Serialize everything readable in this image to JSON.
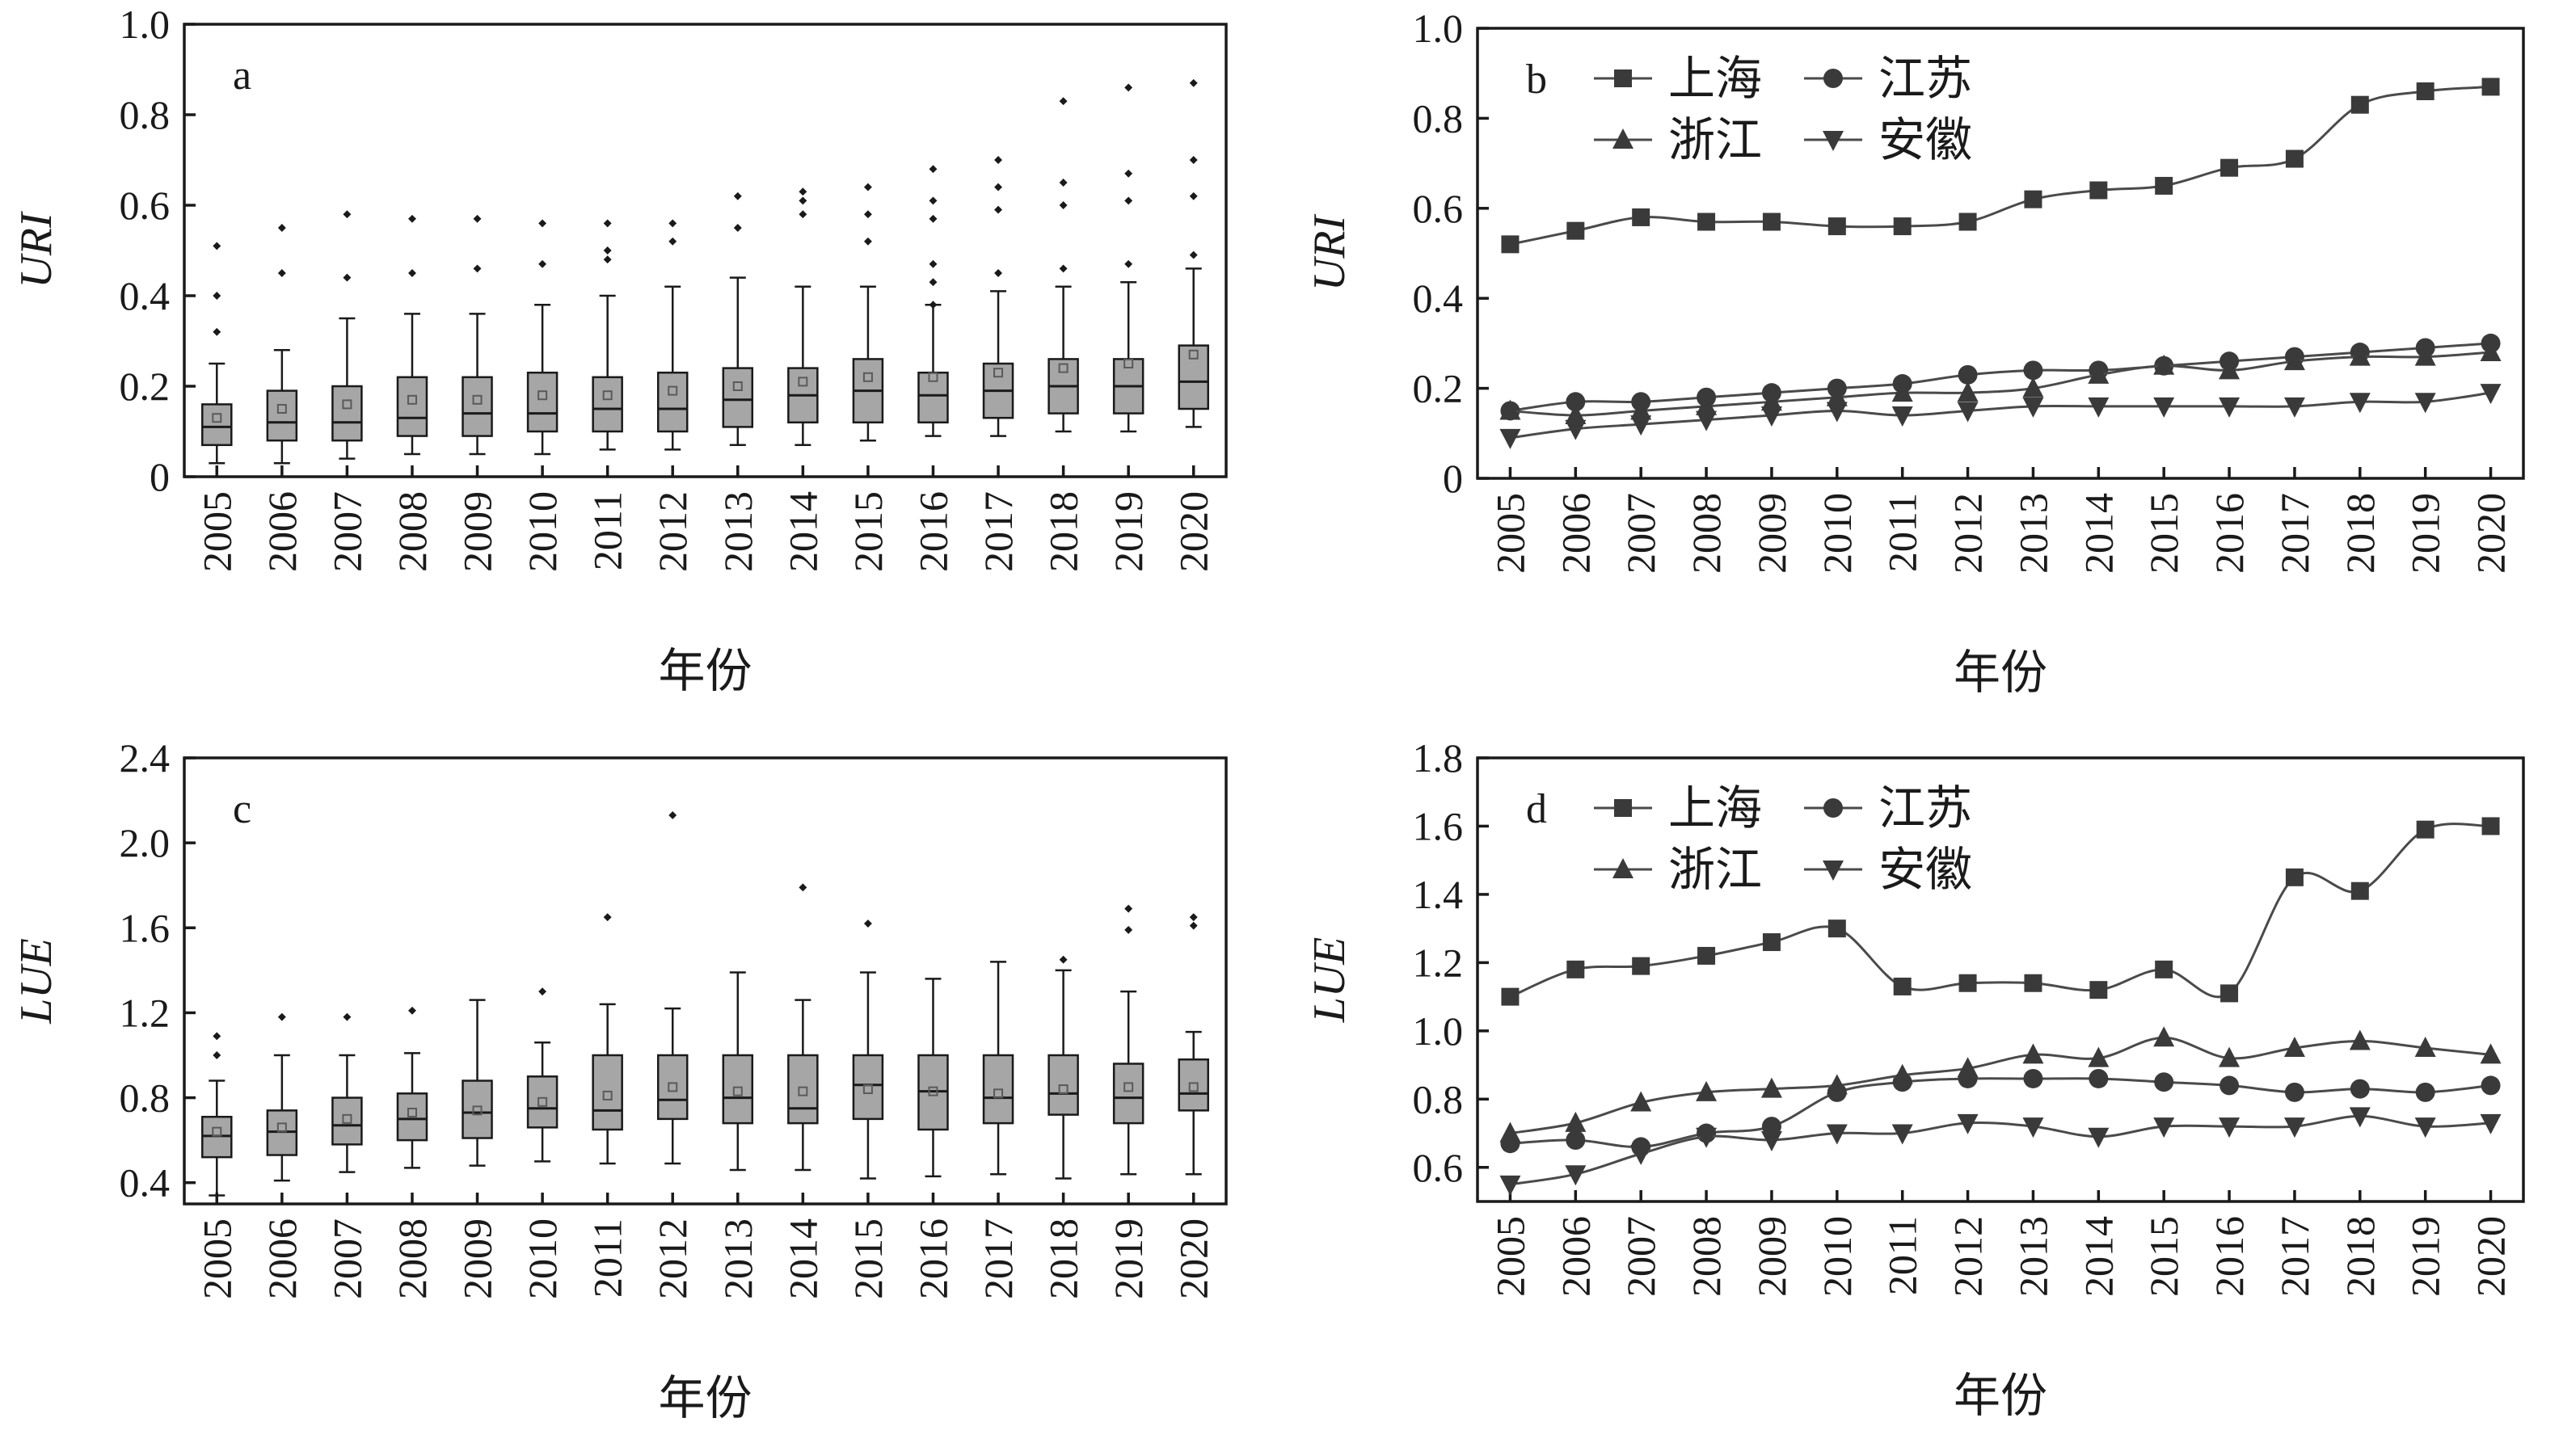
{
  "chart_data": [
    {
      "type": "box",
      "panel_label": "a",
      "ylabel": "URI",
      "xlabel": "年份",
      "ylim": [
        0,
        1.0
      ],
      "yticks": [
        "0",
        "0.2",
        "0.4",
        "0.6",
        "0.8",
        "1.0"
      ],
      "categories": [
        "2005",
        "2006",
        "2007",
        "2008",
        "2009",
        "2010",
        "2011",
        "2012",
        "2013",
        "2014",
        "2015",
        "2016",
        "2017",
        "2018",
        "2019",
        "2020"
      ],
      "boxes": [
        {
          "min": 0.03,
          "q1": 0.07,
          "median": 0.11,
          "q3": 0.16,
          "max": 0.25,
          "mean": 0.13,
          "outliers": [
            0.32,
            0.4,
            0.51
          ]
        },
        {
          "min": 0.03,
          "q1": 0.08,
          "median": 0.12,
          "q3": 0.19,
          "max": 0.28,
          "mean": 0.15,
          "outliers": [
            0.45,
            0.55
          ]
        },
        {
          "min": 0.04,
          "q1": 0.08,
          "median": 0.12,
          "q3": 0.2,
          "max": 0.35,
          "mean": 0.16,
          "outliers": [
            0.44,
            0.58
          ]
        },
        {
          "min": 0.05,
          "q1": 0.09,
          "median": 0.13,
          "q3": 0.22,
          "max": 0.36,
          "mean": 0.17,
          "outliers": [
            0.45,
            0.57
          ]
        },
        {
          "min": 0.05,
          "q1": 0.09,
          "median": 0.14,
          "q3": 0.22,
          "max": 0.36,
          "mean": 0.17,
          "outliers": [
            0.46,
            0.57
          ]
        },
        {
          "min": 0.05,
          "q1": 0.1,
          "median": 0.14,
          "q3": 0.23,
          "max": 0.38,
          "mean": 0.18,
          "outliers": [
            0.47,
            0.56
          ]
        },
        {
          "min": 0.06,
          "q1": 0.1,
          "median": 0.15,
          "q3": 0.22,
          "max": 0.4,
          "mean": 0.18,
          "outliers": [
            0.48,
            0.5,
            0.56
          ]
        },
        {
          "min": 0.06,
          "q1": 0.1,
          "median": 0.15,
          "q3": 0.23,
          "max": 0.42,
          "mean": 0.19,
          "outliers": [
            0.52,
            0.56
          ]
        },
        {
          "min": 0.07,
          "q1": 0.11,
          "median": 0.17,
          "q3": 0.24,
          "max": 0.44,
          "mean": 0.2,
          "outliers": [
            0.55,
            0.62
          ]
        },
        {
          "min": 0.07,
          "q1": 0.12,
          "median": 0.18,
          "q3": 0.24,
          "max": 0.42,
          "mean": 0.21,
          "outliers": [
            0.58,
            0.61,
            0.63
          ]
        },
        {
          "min": 0.08,
          "q1": 0.12,
          "median": 0.19,
          "q3": 0.26,
          "max": 0.42,
          "mean": 0.22,
          "outliers": [
            0.52,
            0.58,
            0.64
          ]
        },
        {
          "min": 0.09,
          "q1": 0.12,
          "median": 0.18,
          "q3": 0.23,
          "max": 0.38,
          "mean": 0.22,
          "outliers": [
            0.38,
            0.43,
            0.47,
            0.57,
            0.61,
            0.68
          ]
        },
        {
          "min": 0.09,
          "q1": 0.13,
          "median": 0.19,
          "q3": 0.25,
          "max": 0.41,
          "mean": 0.23,
          "outliers": [
            0.45,
            0.59,
            0.64,
            0.7
          ]
        },
        {
          "min": 0.1,
          "q1": 0.14,
          "median": 0.2,
          "q3": 0.26,
          "max": 0.42,
          "mean": 0.24,
          "outliers": [
            0.46,
            0.6,
            0.65,
            0.83
          ]
        },
        {
          "min": 0.1,
          "q1": 0.14,
          "median": 0.2,
          "q3": 0.26,
          "max": 0.43,
          "mean": 0.25,
          "outliers": [
            0.47,
            0.61,
            0.67,
            0.86
          ]
        },
        {
          "min": 0.11,
          "q1": 0.15,
          "median": 0.21,
          "q3": 0.29,
          "max": 0.46,
          "mean": 0.27,
          "outliers": [
            0.49,
            0.62,
            0.7,
            0.87
          ]
        }
      ]
    },
    {
      "type": "line",
      "panel_label": "b",
      "ylabel": "URI",
      "xlabel": "年份",
      "ylim": [
        0,
        1.0
      ],
      "yticks": [
        "0",
        "0.2",
        "0.4",
        "0.6",
        "0.8",
        "1.0"
      ],
      "x": [
        "2005",
        "2006",
        "2007",
        "2008",
        "2009",
        "2010",
        "2011",
        "2012",
        "2013",
        "2014",
        "2015",
        "2016",
        "2017",
        "2018",
        "2019",
        "2020"
      ],
      "series": [
        {
          "name": "上海",
          "marker": "square",
          "values": [
            0.52,
            0.55,
            0.58,
            0.57,
            0.57,
            0.56,
            0.56,
            0.57,
            0.62,
            0.64,
            0.65,
            0.69,
            0.71,
            0.83,
            0.86,
            0.87
          ]
        },
        {
          "name": "江苏",
          "marker": "circle",
          "values": [
            0.15,
            0.17,
            0.17,
            0.18,
            0.19,
            0.2,
            0.21,
            0.23,
            0.24,
            0.24,
            0.25,
            0.26,
            0.27,
            0.28,
            0.29,
            0.3
          ]
        },
        {
          "name": "浙江",
          "marker": "triangle-up",
          "values": [
            0.15,
            0.14,
            0.15,
            0.16,
            0.17,
            0.18,
            0.19,
            0.19,
            0.2,
            0.23,
            0.25,
            0.24,
            0.26,
            0.27,
            0.27,
            0.28
          ]
        },
        {
          "name": "安徽",
          "marker": "triangle-down",
          "values": [
            0.09,
            0.11,
            0.12,
            0.13,
            0.14,
            0.15,
            0.14,
            0.15,
            0.16,
            0.16,
            0.16,
            0.16,
            0.16,
            0.17,
            0.17,
            0.19
          ]
        }
      ],
      "legend_position": "top-left"
    },
    {
      "type": "box",
      "panel_label": "c",
      "ylabel": "LUE",
      "xlabel": "年份",
      "ylim": [
        0.3,
        2.4
      ],
      "yticks": [
        "0.4",
        "0.8",
        "1.2",
        "1.6",
        "2.0",
        "2.4"
      ],
      "categories": [
        "2005",
        "2006",
        "2007",
        "2008",
        "2009",
        "2010",
        "2011",
        "2012",
        "2013",
        "2014",
        "2015",
        "2016",
        "2017",
        "2018",
        "2019",
        "2020"
      ],
      "boxes": [
        {
          "min": 0.34,
          "q1": 0.52,
          "median": 0.62,
          "q3": 0.71,
          "max": 0.88,
          "mean": 0.64,
          "outliers": [
            1.0,
            1.09
          ]
        },
        {
          "min": 0.41,
          "q1": 0.53,
          "median": 0.64,
          "q3": 0.74,
          "max": 1.0,
          "mean": 0.66,
          "outliers": [
            1.18
          ]
        },
        {
          "min": 0.45,
          "q1": 0.58,
          "median": 0.67,
          "q3": 0.8,
          "max": 1.0,
          "mean": 0.7,
          "outliers": [
            1.18
          ]
        },
        {
          "min": 0.47,
          "q1": 0.6,
          "median": 0.7,
          "q3": 0.82,
          "max": 1.01,
          "mean": 0.73,
          "outliers": [
            1.21
          ]
        },
        {
          "min": 0.48,
          "q1": 0.61,
          "median": 0.73,
          "q3": 0.88,
          "max": 1.26,
          "mean": 0.74,
          "outliers": []
        },
        {
          "min": 0.5,
          "q1": 0.66,
          "median": 0.75,
          "q3": 0.9,
          "max": 1.06,
          "mean": 0.78,
          "outliers": [
            1.3
          ]
        },
        {
          "min": 0.49,
          "q1": 0.65,
          "median": 0.74,
          "q3": 1.0,
          "max": 1.24,
          "mean": 0.81,
          "outliers": [
            1.65
          ]
        },
        {
          "min": 0.49,
          "q1": 0.7,
          "median": 0.79,
          "q3": 1.0,
          "max": 1.22,
          "mean": 0.85,
          "outliers": [
            2.13
          ]
        },
        {
          "min": 0.46,
          "q1": 0.68,
          "median": 0.8,
          "q3": 1.0,
          "max": 1.39,
          "mean": 0.83,
          "outliers": []
        },
        {
          "min": 0.46,
          "q1": 0.68,
          "median": 0.75,
          "q3": 1.0,
          "max": 1.26,
          "mean": 0.83,
          "outliers": [
            1.79
          ]
        },
        {
          "min": 0.42,
          "q1": 0.7,
          "median": 0.86,
          "q3": 1.0,
          "max": 1.39,
          "mean": 0.84,
          "outliers": [
            1.62
          ]
        },
        {
          "min": 0.43,
          "q1": 0.65,
          "median": 0.83,
          "q3": 1.0,
          "max": 1.36,
          "mean": 0.83,
          "outliers": []
        },
        {
          "min": 0.44,
          "q1": 0.68,
          "median": 0.8,
          "q3": 1.0,
          "max": 1.44,
          "mean": 0.82,
          "outliers": []
        },
        {
          "min": 0.42,
          "q1": 0.72,
          "median": 0.82,
          "q3": 1.0,
          "max": 1.4,
          "mean": 0.84,
          "outliers": [
            1.45
          ]
        },
        {
          "min": 0.44,
          "q1": 0.68,
          "median": 0.8,
          "q3": 0.96,
          "max": 1.3,
          "mean": 0.85,
          "outliers": [
            1.59,
            1.69
          ]
        },
        {
          "min": 0.44,
          "q1": 0.74,
          "median": 0.82,
          "q3": 0.98,
          "max": 1.11,
          "mean": 0.85,
          "outliers": [
            1.61,
            1.65
          ]
        }
      ]
    },
    {
      "type": "line",
      "panel_label": "d",
      "ylabel": "LUE",
      "xlabel": "年份",
      "ylim": [
        0.5,
        1.8
      ],
      "yticks": [
        "0.6",
        "0.8",
        "1.0",
        "1.2",
        "1.4",
        "1.6",
        "1.8"
      ],
      "x": [
        "2005",
        "2006",
        "2007",
        "2008",
        "2009",
        "2010",
        "2011",
        "2012",
        "2013",
        "2014",
        "2015",
        "2016",
        "2017",
        "2018",
        "2019",
        "2020"
      ],
      "series": [
        {
          "name": "上海",
          "marker": "square",
          "values": [
            1.1,
            1.18,
            1.19,
            1.22,
            1.26,
            1.3,
            1.13,
            1.14,
            1.14,
            1.12,
            1.18,
            1.11,
            1.45,
            1.41,
            1.59,
            1.6
          ]
        },
        {
          "name": "江苏",
          "marker": "circle",
          "values": [
            0.67,
            0.68,
            0.66,
            0.7,
            0.72,
            0.82,
            0.85,
            0.86,
            0.86,
            0.86,
            0.85,
            0.84,
            0.82,
            0.83,
            0.82,
            0.84
          ]
        },
        {
          "name": "浙江",
          "marker": "triangle-up",
          "values": [
            0.7,
            0.73,
            0.79,
            0.82,
            0.83,
            0.84,
            0.87,
            0.89,
            0.93,
            0.92,
            0.98,
            0.92,
            0.95,
            0.97,
            0.95,
            0.93
          ]
        },
        {
          "name": "安徽",
          "marker": "triangle-down",
          "values": [
            0.55,
            0.58,
            0.64,
            0.69,
            0.68,
            0.7,
            0.7,
            0.73,
            0.72,
            0.69,
            0.72,
            0.72,
            0.72,
            0.75,
            0.72,
            0.73
          ]
        }
      ],
      "legend_position": "top-left"
    }
  ]
}
